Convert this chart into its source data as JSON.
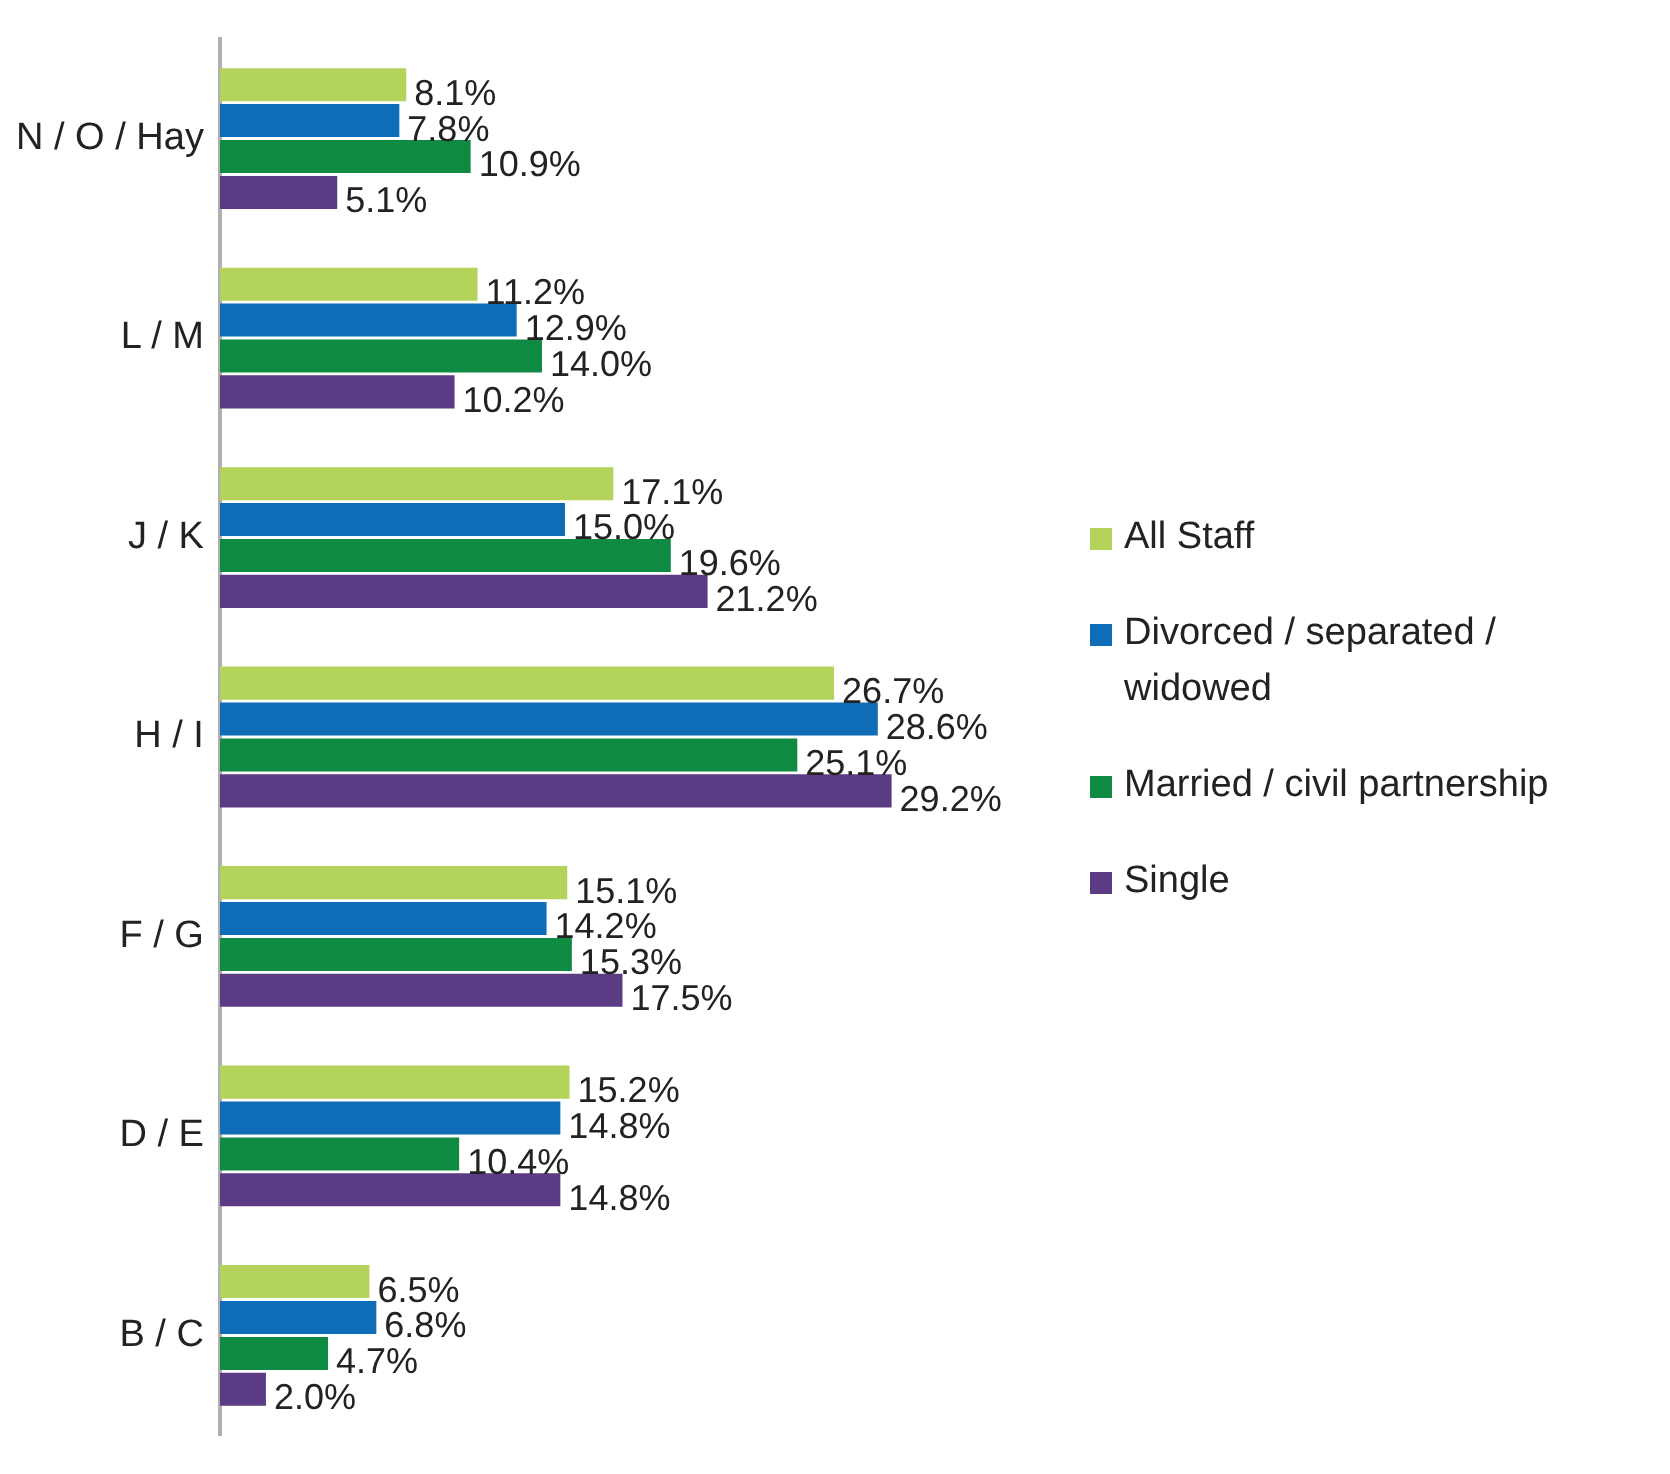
{
  "chart_data": {
    "type": "bar",
    "orientation": "horizontal",
    "categories": [
      "N / O / Hay",
      "L / M",
      "J / K",
      "H / I",
      "F / G",
      "D / E",
      "B / C"
    ],
    "series": [
      {
        "name": "All Staff",
        "color": "#b3d35b",
        "values": [
          8.1,
          11.2,
          17.1,
          26.7,
          15.1,
          15.2,
          6.5
        ],
        "value_labels": [
          "8.1%",
          "11.2%",
          "17.1%",
          "26.7%",
          "15.1%",
          "15.2%",
          "6.5%"
        ]
      },
      {
        "name": "Divorced / separated / widowed",
        "color": "#0f6cb6",
        "values": [
          7.8,
          12.9,
          15.0,
          28.6,
          14.2,
          14.8,
          6.8
        ],
        "value_labels": [
          "7.8%",
          "12.9%",
          "15.0%",
          "28.6%",
          "14.2%",
          "14.8%",
          "6.8%"
        ]
      },
      {
        "name": "Married / civil partnership",
        "color": "#0e8a43",
        "values": [
          10.9,
          14.0,
          19.6,
          25.1,
          15.3,
          10.4,
          4.7
        ],
        "value_labels": [
          "10.9%",
          "14.0%",
          "19.6%",
          "25.1%",
          "15.3%",
          "10.4%",
          "4.7%"
        ]
      },
      {
        "name": "Single",
        "color": "#5b3b84",
        "values": [
          5.1,
          10.2,
          21.2,
          29.2,
          17.5,
          14.8,
          2.0
        ],
        "value_labels": [
          "5.1%",
          "10.2%",
          "21.2%",
          "29.2%",
          "17.5%",
          "14.8%",
          "2.0%"
        ]
      }
    ],
    "tick_labels": "y",
    "legend": "right"
  }
}
